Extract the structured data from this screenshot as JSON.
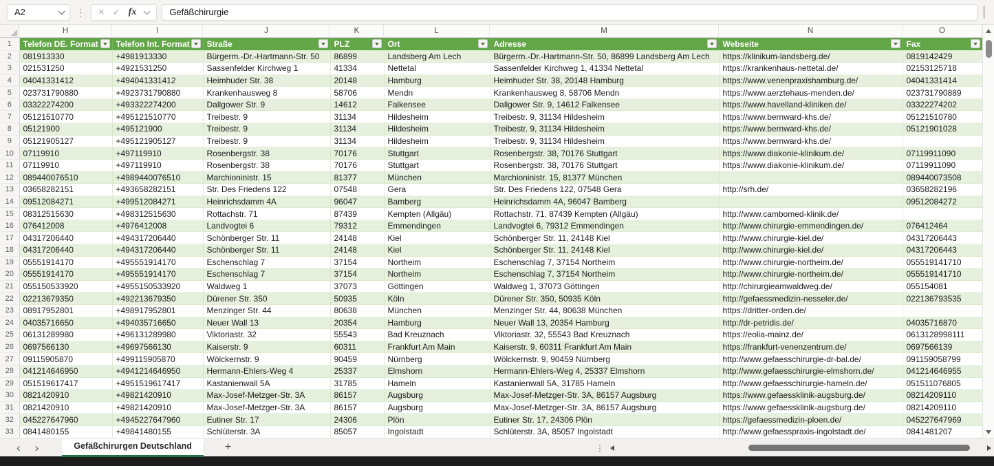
{
  "formula_bar": {
    "name_box": "A2",
    "formula": "Gefäßchirurgie"
  },
  "grid": {
    "column_letters": [
      "H",
      "I",
      "J",
      "K",
      "L",
      "M",
      "N",
      "O"
    ],
    "first_row_number": 1
  },
  "table": {
    "headers": [
      "Telefon DE. Format",
      "Telefon Int. Format",
      "Straße",
      "PLZ",
      "Ort",
      "Adresse",
      "Webseite",
      "Fax"
    ],
    "rows": [
      [
        "081913330",
        "+4981913330",
        "Bürgerm.-Dr.-Hartmann-Str. 50",
        "86899",
        "Landsberg Am Lech",
        "Bürgerm.-Dr.-Hartmann-Str. 50, 86899 Landsberg Am Lech",
        "https://klinikum-landsberg.de/",
        "0819142429"
      ],
      [
        "021531250",
        "+4921531250",
        "Sassenfelder Kirchweg 1",
        "41334",
        "Nettetal",
        "Sassenfelder Kirchweg 1, 41334 Nettetal",
        "https://krankenhaus-nettetal.de/",
        "02153125718"
      ],
      [
        "04041331412",
        "+494041331412",
        "Heimhuder Str. 38",
        "20148",
        "Hamburg",
        "Heimhuder Str. 38, 20148 Hamburg",
        "https://www.venenpraxishamburg.de/",
        "04041331414"
      ],
      [
        "023731790880",
        "+4923731790880",
        "Krankenhausweg 8",
        "58706",
        "Mendn",
        "Krankenhausweg 8, 58706 Mendn",
        "https://www.aerztehaus-menden.de/",
        "023731790889"
      ],
      [
        "03322274200",
        "+493322274200",
        "Dallgower Str. 9",
        "14612",
        "Falkensee",
        "Dallgower Str. 9, 14612 Falkensee",
        "https://www.havelland-kliniken.de/",
        "03322274202"
      ],
      [
        "05121510770",
        "+495121510770",
        "Treibestr. 9",
        "31134",
        "Hildesheim",
        "Treibestr. 9, 31134 Hildesheim",
        "https://www.bernward-khs.de/",
        "05121510780"
      ],
      [
        "05121900",
        "+495121900",
        "Treibestr. 9",
        "31134",
        "Hildesheim",
        "Treibestr. 9, 31134 Hildesheim",
        "https://www.bernward-khs.de/",
        "05121901028"
      ],
      [
        "05121905127",
        "+495121905127",
        "Treibestr. 9",
        "31134",
        "Hildesheim",
        "Treibestr. 9, 31134 Hildesheim",
        "https://www.bernward-khs.de/",
        ""
      ],
      [
        "07119910",
        "+497119910",
        "Rosenbergstr. 38",
        "70176",
        "Stuttgart",
        "Rosenbergstr. 38, 70176 Stuttgart",
        "https://www.diakonie-klinikum.de/",
        "07119911090"
      ],
      [
        "07119910",
        "+497119910",
        "Rosenbergstr. 38",
        "70176",
        "Stuttgart",
        "Rosenbergstr. 38, 70176 Stuttgart",
        "https://www.diakonie-klinikum.de/",
        "07119911090"
      ],
      [
        "089440076510",
        "+4989440076510",
        "Marchioninistr. 15",
        "81377",
        "München",
        "Marchioninistr. 15, 81377 München",
        "",
        "089440073508"
      ],
      [
        "03658282151",
        "+493658282151",
        "Str. Des Friedens 122",
        "07548",
        "Gera",
        "Str. Des Friedens 122, 07548 Gera",
        "http://srh.de/",
        "03658282196"
      ],
      [
        "09512084271",
        "+499512084271",
        "Heinrichsdamm 4A",
        "96047",
        "Bamberg",
        "Heinrichsdamm 4A, 96047 Bamberg",
        "",
        "09512084272"
      ],
      [
        "08312515630",
        "+498312515630",
        "Rottachstr. 71",
        "87439",
        "Kempten (Allgäu)",
        "Rottachstr. 71, 87439 Kempten (Allgäu)",
        "http://www.cambomed-klinik.de/",
        ""
      ],
      [
        "076412008",
        "+4976412008",
        "Landvogtei 6",
        "79312",
        "Emmendingen",
        "Landvogtei 6, 79312 Emmendingen",
        "http://www.chirurgie-emmendingen.de/",
        "076412464"
      ],
      [
        "04317206440",
        "+494317206440",
        "Schönberger Str. 11",
        "24148",
        "Kiel",
        "Schönberger Str. 11, 24148 Kiel",
        "http://www.chirurgie-kiel.de/",
        "04317206443"
      ],
      [
        "04317206440",
        "+494317206440",
        "Schönberger Str. 11",
        "24148",
        "Kiel",
        "Schönberger Str. 11, 24148 Kiel",
        "http://www.chirurgie-kiel.de/",
        "04317206443"
      ],
      [
        "05551914170",
        "+495551914170",
        "Eschenschlag 7",
        "37154",
        "Northeim",
        "Eschenschlag 7, 37154 Northeim",
        "http://www.chirurgie-northeim.de/",
        "055519141710"
      ],
      [
        "05551914170",
        "+495551914170",
        "Eschenschlag 7",
        "37154",
        "Northeim",
        "Eschenschlag 7, 37154 Northeim",
        "http://www.chirurgie-northeim.de/",
        "055519141710"
      ],
      [
        "055150533920",
        "+4955150533920",
        "Waldweg 1",
        "37073",
        "Göttingen",
        "Waldweg 1, 37073 Göttingen",
        "http://chirurgieamwaldweg.de/",
        "055154081"
      ],
      [
        "02213679350",
        "+492213679350",
        "Dürener Str. 350",
        "50935",
        "Köln",
        "Dürener Str. 350, 50935 Köln",
        "http://gefaessmedizin-nesseler.de/",
        "022136793535"
      ],
      [
        "08917952801",
        "+498917952801",
        "Menzinger Str. 44",
        "80638",
        "München",
        "Menzinger Str. 44, 80638 München",
        "https://dritter-orden.de/",
        ""
      ],
      [
        "04035716650",
        "+494035716650",
        "Neuer Wall 13",
        "20354",
        "Hamburg",
        "Neuer Wall 13, 20354 Hamburg",
        "http://dr-petridis.de/",
        "04035716870"
      ],
      [
        "06131289980",
        "+496131289980",
        "Viktoriastr. 32",
        "55543",
        "Bad Kreuznach",
        "Viktoriastr. 32, 55543 Bad Kreuznach",
        "https://eolia-mainz.de/",
        "0613128998111"
      ],
      [
        "0697566130",
        "+49697566130",
        "Kaiserstr. 9",
        "60311",
        "Frankfurt Am Main",
        "Kaiserstr. 9, 60311 Frankfurt Am Main",
        "https://frankfurt-venenzentrum.de/",
        "0697566139"
      ],
      [
        "09115905870",
        "+499115905870",
        "Wölckernstr. 9",
        "90459",
        "Nürnberg",
        "Wölckernstr. 9, 90459 Nürnberg",
        "http://www.gefaesschirurgie-dr-bal.de/",
        "091159058799"
      ],
      [
        "041214646950",
        "+4941214646950",
        "Hermann-Ehlers-Weg 4",
        "25337",
        "Elmshorn",
        "Hermann-Ehlers-Weg 4, 25337 Elmshorn",
        "http://www.gefaesschirurgie-elmshorn.de/",
        "041214646955"
      ],
      [
        "051519617417",
        "+4951519617417",
        "Kastanienwall 5A",
        "31785",
        "Hameln",
        "Kastanienwall 5A, 31785 Hameln",
        "http://www.gefaesschirurgie-hameln.de/",
        "051511076805"
      ],
      [
        "0821420910",
        "+49821420910",
        "Max-Josef-Metzger-Str. 3A",
        "86157",
        "Augsburg",
        "Max-Josef-Metzger-Str. 3A, 86157 Augsburg",
        "https://www.gefaessklinik-augsburg.de/",
        "08214209110"
      ],
      [
        "0821420910",
        "+49821420910",
        "Max-Josef-Metzger-Str. 3A",
        "86157",
        "Augsburg",
        "Max-Josef-Metzger-Str. 3A, 86157 Augsburg",
        "https://www.gefaessklinik-augsburg.de/",
        "08214209110"
      ],
      [
        "045227647960",
        "+4945227647960",
        "Eutiner Str. 17",
        "24306",
        "Plön",
        "Eutiner Str. 17, 24306 Plön",
        "https://gefaessmedizin-ploen.de/",
        "045227647969"
      ],
      [
        "0841480155",
        "+49841480155",
        "Schlüterstr. 3A",
        "85057",
        "Ingolstadt",
        "Schlüterstr. 3A, 85057 Ingolstadt",
        "http://www.gefaesspraxis-ingolstadt.de/",
        "0841481207"
      ]
    ]
  },
  "sheet_bar": {
    "tab_label": "Gefäßchirurgen Deutschland",
    "add_label": "+"
  },
  "colors": {
    "header_green": "#62a647",
    "band_green": "#e6f0dc",
    "tab_underline": "#217346"
  }
}
